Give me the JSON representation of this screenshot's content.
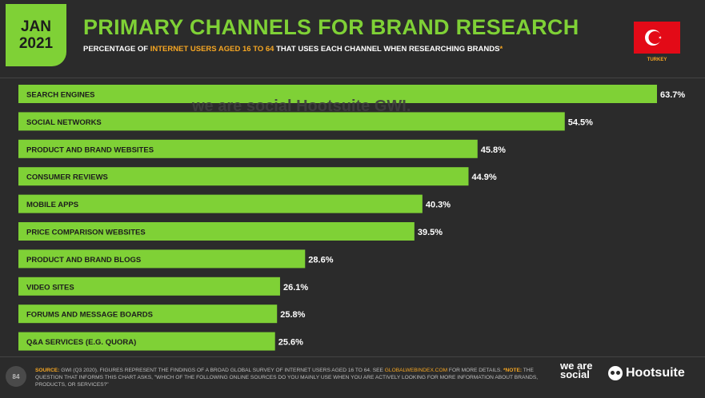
{
  "header": {
    "month": "JAN",
    "year": "2021",
    "title": "PRIMARY CHANNELS FOR BRAND RESEARCH",
    "subtitle_pre": "PERCENTAGE OF ",
    "subtitle_hl": "INTERNET USERS AGED 16 TO 64",
    "subtitle_post": " THAT USES EACH CHANNEL WHEN RESEARCHING BRANDS",
    "subtitle_mark": "*",
    "country": "TURKEY",
    "flag_symbol": "☾★"
  },
  "watermark": "we are social  Hootsuite  GWI.",
  "chart_data": {
    "type": "bar",
    "orientation": "horizontal",
    "categories": [
      "SEARCH ENGINES",
      "SOCIAL NETWORKS",
      "PRODUCT AND BRAND WEBSITES",
      "CONSUMER REVIEWS",
      "MOBILE APPS",
      "PRICE COMPARISON WEBSITES",
      "PRODUCT AND BRAND BLOGS",
      "VIDEO SITES",
      "FORUMS AND MESSAGE BOARDS",
      "Q&A SERVICES (E.G. QUORA)"
    ],
    "values": [
      63.7,
      54.5,
      45.8,
      44.9,
      40.3,
      39.5,
      28.6,
      26.1,
      25.8,
      25.6
    ],
    "value_labels": [
      "63.7%",
      "54.5%",
      "45.8%",
      "44.9%",
      "40.3%",
      "39.5%",
      "28.6%",
      "26.1%",
      "25.8%",
      "25.6%"
    ],
    "title": "PRIMARY CHANNELS FOR BRAND RESEARCH",
    "xlabel": "",
    "ylabel": "",
    "xlim": [
      0,
      63.7
    ],
    "grid": false,
    "bar_color": "#7fd136",
    "label_color": "#1d1d1d"
  },
  "footer": {
    "page_number": "84",
    "source_label": "SOURCE:",
    "source_text": " GWI (Q3 2020). FIGURES REPRESENT THE FINDINGS OF A BROAD GLOBAL SURVEY OF INTERNET USERS AGED 16 TO 64. SEE ",
    "source_link": "GLOBALWEBINDEX.COM",
    "source_end": " FOR MORE DETAILS.",
    "note_label": "*NOTE:",
    "note_text": " THE QUESTION THAT INFORMS THIS CHART ASKS, \"WHICH OF THE FOLLOWING ONLINE SOURCES DO YOU MAINLY USE WHEN YOU ARE ACTIVELY LOOKING FOR MORE INFORMATION ABOUT BRANDS, PRODUCTS, OR SERVICES?\"",
    "logo_was": "we are social",
    "logo_hs": "Hootsuite",
    "logo_hs_mark": "®"
  },
  "colors": {
    "background": "#2b2b2b",
    "accent": "#7fd136",
    "highlight": "#f5a623",
    "flag": "#e30a17"
  }
}
